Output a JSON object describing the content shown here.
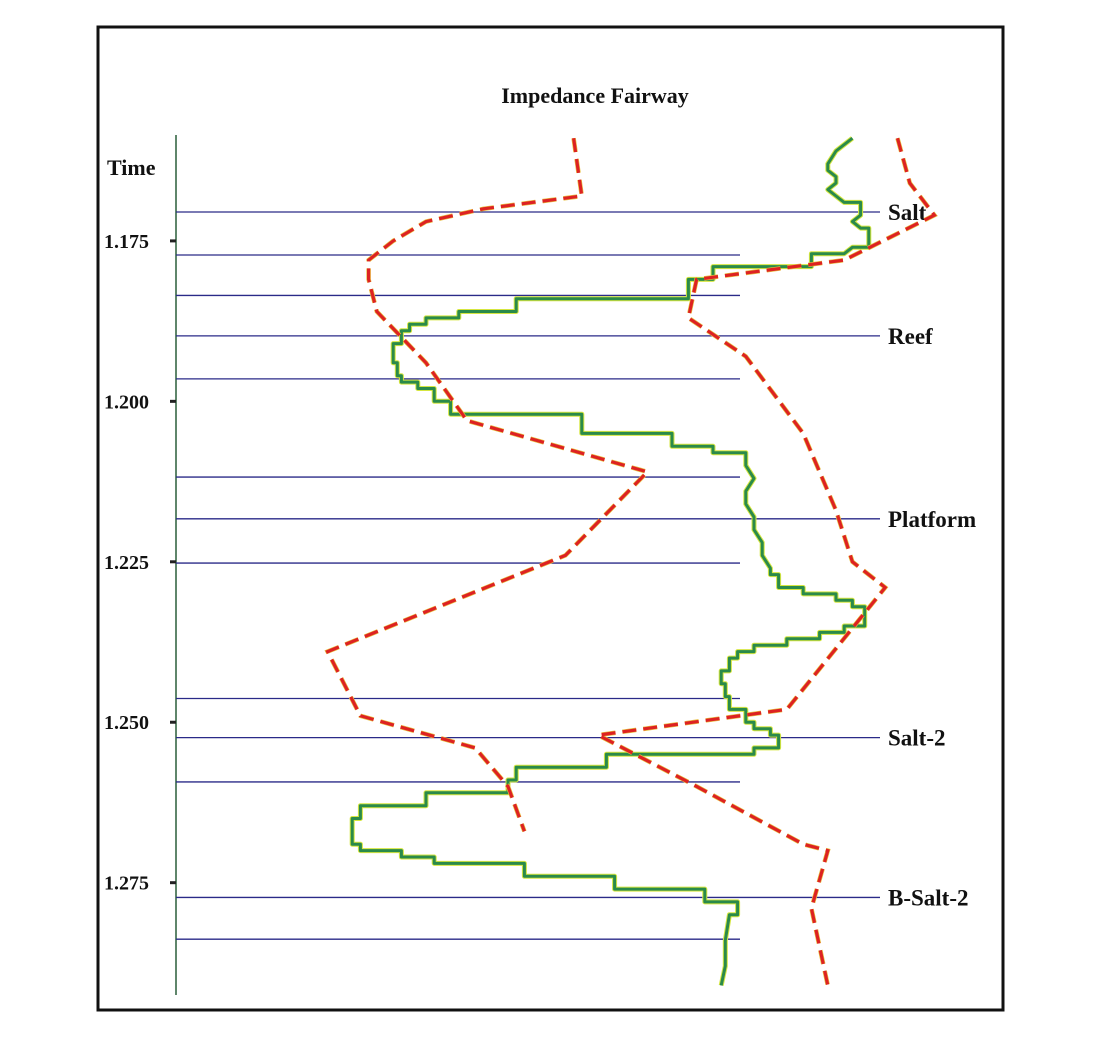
{
  "chart_data": {
    "type": "line",
    "title": "Impedance Fairway",
    "ylabel": "Time",
    "ylim": [
      1.1585,
      1.2925
    ],
    "yticks": [
      {
        "value": 1.175,
        "label": "1.175"
      },
      {
        "value": 1.2,
        "label": "1.200"
      },
      {
        "value": 1.225,
        "label": "1.225"
      },
      {
        "value": 1.25,
        "label": "1.250"
      },
      {
        "value": 1.275,
        "label": "1.275"
      }
    ],
    "horizons": [
      {
        "time": 1.1705,
        "label": "Salt"
      },
      {
        "time": 1.1772,
        "label": ""
      },
      {
        "time": 1.1835,
        "label": ""
      },
      {
        "time": 1.1898,
        "label": "Reef"
      },
      {
        "time": 1.1965,
        "label": ""
      },
      {
        "time": 1.2118,
        "label": ""
      },
      {
        "time": 1.2183,
        "label": "Platform"
      },
      {
        "time": 1.2252,
        "label": ""
      },
      {
        "time": 1.2463,
        "label": ""
      },
      {
        "time": 1.2524,
        "label": "Salt-2"
      },
      {
        "time": 1.2593,
        "label": ""
      },
      {
        "time": 1.2773,
        "label": "B-Salt-2"
      },
      {
        "time": 1.2838,
        "label": ""
      }
    ],
    "series": [
      {
        "color": "#2a8a4a",
        "style": "solid",
        "points": [
          [
            0.82,
            1.159
          ],
          [
            0.8,
            1.161
          ],
          [
            0.79,
            1.163
          ],
          [
            0.79,
            1.164
          ],
          [
            0.8,
            1.165
          ],
          [
            0.8,
            1.166
          ],
          [
            0.79,
            1.167
          ],
          [
            0.8,
            1.168
          ],
          [
            0.81,
            1.169
          ],
          [
            0.83,
            1.169
          ],
          [
            0.83,
            1.171
          ],
          [
            0.82,
            1.172
          ],
          [
            0.83,
            1.173
          ],
          [
            0.84,
            1.173
          ],
          [
            0.84,
            1.175
          ],
          [
            0.84,
            1.176
          ],
          [
            0.82,
            1.176
          ],
          [
            0.81,
            1.177
          ],
          [
            0.77,
            1.177
          ],
          [
            0.77,
            1.179
          ],
          [
            0.65,
            1.179
          ],
          [
            0.65,
            1.181
          ],
          [
            0.62,
            1.181
          ],
          [
            0.62,
            1.184
          ],
          [
            0.41,
            1.184
          ],
          [
            0.41,
            1.186
          ],
          [
            0.34,
            1.186
          ],
          [
            0.34,
            1.187
          ],
          [
            0.3,
            1.187
          ],
          [
            0.3,
            1.188
          ],
          [
            0.28,
            1.188
          ],
          [
            0.28,
            1.189
          ],
          [
            0.27,
            1.189
          ],
          [
            0.27,
            1.191
          ],
          [
            0.26,
            1.191
          ],
          [
            0.26,
            1.193
          ],
          [
            0.26,
            1.194
          ],
          [
            0.265,
            1.194
          ],
          [
            0.265,
            1.196
          ],
          [
            0.27,
            1.196
          ],
          [
            0.27,
            1.197
          ],
          [
            0.29,
            1.197
          ],
          [
            0.29,
            1.198
          ],
          [
            0.31,
            1.198
          ],
          [
            0.31,
            1.2
          ],
          [
            0.33,
            1.2
          ],
          [
            0.33,
            1.202
          ],
          [
            0.49,
            1.202
          ],
          [
            0.49,
            1.205
          ],
          [
            0.6,
            1.205
          ],
          [
            0.6,
            1.207
          ],
          [
            0.65,
            1.207
          ],
          [
            0.65,
            1.208
          ],
          [
            0.69,
            1.208
          ],
          [
            0.69,
            1.21
          ],
          [
            0.7,
            1.212
          ],
          [
            0.69,
            1.214
          ],
          [
            0.69,
            1.216
          ],
          [
            0.7,
            1.218
          ],
          [
            0.7,
            1.22
          ],
          [
            0.71,
            1.222
          ],
          [
            0.71,
            1.224
          ],
          [
            0.72,
            1.226
          ],
          [
            0.72,
            1.227
          ],
          [
            0.73,
            1.227
          ],
          [
            0.73,
            1.229
          ],
          [
            0.76,
            1.229
          ],
          [
            0.76,
            1.23
          ],
          [
            0.8,
            1.23
          ],
          [
            0.8,
            1.231
          ],
          [
            0.82,
            1.231
          ],
          [
            0.82,
            1.232
          ],
          [
            0.835,
            1.232
          ],
          [
            0.835,
            1.235
          ],
          [
            0.81,
            1.235
          ],
          [
            0.81,
            1.236
          ],
          [
            0.78,
            1.236
          ],
          [
            0.78,
            1.237
          ],
          [
            0.74,
            1.237
          ],
          [
            0.74,
            1.238
          ],
          [
            0.7,
            1.238
          ],
          [
            0.7,
            1.239
          ],
          [
            0.68,
            1.239
          ],
          [
            0.68,
            1.24
          ],
          [
            0.67,
            1.24
          ],
          [
            0.67,
            1.242
          ],
          [
            0.66,
            1.242
          ],
          [
            0.66,
            1.244
          ],
          [
            0.665,
            1.244
          ],
          [
            0.665,
            1.246
          ],
          [
            0.67,
            1.246
          ],
          [
            0.67,
            1.248
          ],
          [
            0.69,
            1.248
          ],
          [
            0.69,
            1.25
          ],
          [
            0.7,
            1.25
          ],
          [
            0.7,
            1.251
          ],
          [
            0.72,
            1.251
          ],
          [
            0.72,
            1.252
          ],
          [
            0.73,
            1.252
          ],
          [
            0.73,
            1.254
          ],
          [
            0.7,
            1.254
          ],
          [
            0.7,
            1.255
          ],
          [
            0.52,
            1.255
          ],
          [
            0.52,
            1.257
          ],
          [
            0.41,
            1.257
          ],
          [
            0.41,
            1.259
          ],
          [
            0.4,
            1.259
          ],
          [
            0.4,
            1.261
          ],
          [
            0.3,
            1.261
          ],
          [
            0.3,
            1.263
          ],
          [
            0.22,
            1.263
          ],
          [
            0.22,
            1.265
          ],
          [
            0.21,
            1.265
          ],
          [
            0.21,
            1.269
          ],
          [
            0.22,
            1.269
          ],
          [
            0.22,
            1.27
          ],
          [
            0.27,
            1.27
          ],
          [
            0.27,
            1.271
          ],
          [
            0.31,
            1.271
          ],
          [
            0.31,
            1.272
          ],
          [
            0.42,
            1.272
          ],
          [
            0.42,
            1.274
          ],
          [
            0.53,
            1.274
          ],
          [
            0.53,
            1.276
          ],
          [
            0.64,
            1.276
          ],
          [
            0.64,
            1.278
          ],
          [
            0.68,
            1.278
          ],
          [
            0.68,
            1.28
          ],
          [
            0.67,
            1.28
          ],
          [
            0.665,
            1.284
          ],
          [
            0.665,
            1.288
          ],
          [
            0.66,
            1.291
          ]
        ]
      },
      {
        "color": "#dd2222",
        "style": "dashed",
        "points": [
          [
            0.48,
            1.159
          ],
          [
            0.49,
            1.168
          ],
          [
            0.37,
            1.17
          ],
          [
            0.3,
            1.172
          ],
          [
            0.26,
            1.175
          ],
          [
            0.23,
            1.178
          ],
          [
            0.23,
            1.181
          ],
          [
            0.24,
            1.186
          ],
          [
            0.3,
            1.194
          ],
          [
            0.35,
            1.203
          ],
          [
            0.57,
            1.211
          ],
          [
            0.47,
            1.224
          ],
          [
            0.18,
            1.239
          ],
          [
            0.22,
            1.249
          ],
          [
            0.36,
            1.254
          ],
          [
            0.4,
            1.26
          ],
          [
            0.42,
            1.267
          ]
        ]
      },
      {
        "color": "#dd2222",
        "style": "dashed",
        "points": [
          [
            0.875,
            1.159
          ],
          [
            0.89,
            1.166
          ],
          [
            0.92,
            1.171
          ],
          [
            0.81,
            1.178
          ],
          [
            0.63,
            1.181
          ],
          [
            0.62,
            1.187
          ],
          [
            0.69,
            1.193
          ],
          [
            0.76,
            1.205
          ],
          [
            0.8,
            1.217
          ],
          [
            0.82,
            1.225
          ],
          [
            0.86,
            1.229
          ],
          [
            0.74,
            1.248
          ],
          [
            0.51,
            1.252
          ],
          [
            0.63,
            1.26
          ],
          [
            0.76,
            1.269
          ],
          [
            0.79,
            1.27
          ],
          [
            0.77,
            1.279
          ],
          [
            0.79,
            1.291
          ]
        ]
      }
    ]
  }
}
